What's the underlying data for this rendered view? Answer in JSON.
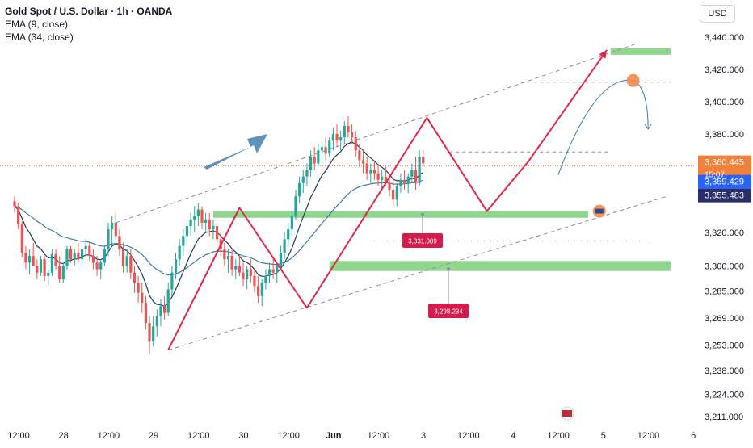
{
  "header": {
    "title": "Gold Spot / U.S. Dollar · 1h · OANDA",
    "indicators": [
      "EMA (9, close)",
      "EMA (34, close)"
    ]
  },
  "currency_button": "USD",
  "colors": {
    "bull": "#26a69a",
    "bear": "#ef5350",
    "ema_fast": "#1e3a5f",
    "ema_slow": "#3a7ca5",
    "zone": "#7ccf7a",
    "projection": "#e0284a",
    "big_arrow": "#4f86b5",
    "current_price": "#f0823c",
    "marker": "#ef8a50",
    "label_red": "#d51c4d",
    "label_blue": "#2962ff",
    "label_navy": "#2a2e6b"
  },
  "chart_data": {
    "type": "candlestick",
    "symbol": "Gold Spot / U.S. Dollar",
    "interval": "1h",
    "source": "OANDA",
    "y_axis": {
      "ticks": [
        "3,440.000",
        "3,420.000",
        "3,400.000",
        "3,380.000",
        "3,320.000",
        "3,300.000",
        "3,285.000",
        "3,269.000",
        "3,253.000",
        "3,238.000",
        "3,224.000",
        "3,211.000"
      ],
      "tick_values": [
        3440,
        3420,
        3400,
        3380,
        3320,
        3300,
        3285,
        3269,
        3253,
        3238,
        3224,
        3211
      ],
      "scale": "log"
    },
    "x_axis": {
      "ticks": [
        "12:00",
        "28",
        "12:00",
        "29",
        "12:00",
        "30",
        "12:00",
        "Jun",
        "12:00",
        "3",
        "12:00",
        "4",
        "12:00",
        "5",
        "12:00",
        "6"
      ],
      "tick_bars": [
        0,
        12,
        24,
        36,
        48,
        60,
        72,
        84,
        96,
        108,
        120,
        132,
        144,
        156,
        168,
        180
      ]
    },
    "price_labels": {
      "current": "3,360.445",
      "countdown": "15:07",
      "ema_fast": "3,359.429",
      "ema_slow": "3,355.483"
    },
    "annotations": [
      {
        "label": "3,331.009",
        "price": 3331.009
      },
      {
        "label": "3,298.234",
        "price": 3298.234
      }
    ],
    "zones": [
      {
        "price_low": 3329,
        "price_high": 3333,
        "bar_from": 53,
        "bar_to": 153
      },
      {
        "price_low": 3297,
        "price_high": 3303,
        "bar_from": 84,
        "bar_to": 175
      },
      {
        "price_low": 3429,
        "price_high": 3433,
        "bar_from": 159,
        "bar_to": 175
      }
    ],
    "projection_path": [
      {
        "bar": 41,
        "price": 3250
      },
      {
        "bar": 60,
        "price": 3335
      },
      {
        "bar": 78,
        "price": 3275
      },
      {
        "bar": 110,
        "price": 3390
      },
      {
        "bar": 126,
        "price": 3333
      },
      {
        "bar": 137,
        "price": 3363
      },
      {
        "bar": 158,
        "price": 3432
      }
    ],
    "channel": {
      "upper": [
        {
          "bar": 27,
          "price": 3326
        },
        {
          "bar": 166,
          "price": 3436
        }
      ],
      "lower": [
        {
          "bar": 41,
          "price": 3250
        },
        {
          "bar": 174,
          "price": 3342
        }
      ]
    },
    "dashed_levels": [
      {
        "price": 3412,
        "bar_from": 135,
        "bar_to": 175
      },
      {
        "price": 3369,
        "bar_from": 116,
        "bar_to": 159
      },
      {
        "price": 3315,
        "bar_from": 96,
        "bar_to": 169
      }
    ],
    "marker_points": [
      {
        "bar": 165,
        "price": 3413
      },
      {
        "bar": 156,
        "price": 3333
      }
    ],
    "curve_forecast": [
      {
        "bar": 145,
        "price": 3355
      },
      {
        "bar": 165,
        "price": 3413
      },
      {
        "bar": 169,
        "price": 3383
      }
    ],
    "candles": [
      {
        "o": 3339,
        "h": 3342,
        "l": 3332,
        "c": 3336
      },
      {
        "o": 3336,
        "h": 3338,
        "l": 3322,
        "c": 3325
      },
      {
        "o": 3325,
        "h": 3327,
        "l": 3305,
        "c": 3308
      },
      {
        "o": 3308,
        "h": 3312,
        "l": 3298,
        "c": 3302
      },
      {
        "o": 3302,
        "h": 3310,
        "l": 3295,
        "c": 3306
      },
      {
        "o": 3306,
        "h": 3314,
        "l": 3300,
        "c": 3300
      },
      {
        "o": 3300,
        "h": 3304,
        "l": 3292,
        "c": 3296
      },
      {
        "o": 3296,
        "h": 3306,
        "l": 3294,
        "c": 3304
      },
      {
        "o": 3304,
        "h": 3306,
        "l": 3291,
        "c": 3294
      },
      {
        "o": 3294,
        "h": 3298,
        "l": 3288,
        "c": 3296
      },
      {
        "o": 3296,
        "h": 3310,
        "l": 3294,
        "c": 3307
      },
      {
        "o": 3307,
        "h": 3310,
        "l": 3298,
        "c": 3300
      },
      {
        "o": 3300,
        "h": 3306,
        "l": 3290,
        "c": 3292
      },
      {
        "o": 3292,
        "h": 3302,
        "l": 3290,
        "c": 3300
      },
      {
        "o": 3300,
        "h": 3312,
        "l": 3298,
        "c": 3310
      },
      {
        "o": 3310,
        "h": 3312,
        "l": 3302,
        "c": 3304
      },
      {
        "o": 3304,
        "h": 3310,
        "l": 3300,
        "c": 3308
      },
      {
        "o": 3308,
        "h": 3314,
        "l": 3302,
        "c": 3304
      },
      {
        "o": 3304,
        "h": 3312,
        "l": 3298,
        "c": 3310
      },
      {
        "o": 3310,
        "h": 3316,
        "l": 3306,
        "c": 3312
      },
      {
        "o": 3312,
        "h": 3315,
        "l": 3303,
        "c": 3306
      },
      {
        "o": 3306,
        "h": 3310,
        "l": 3298,
        "c": 3302
      },
      {
        "o": 3302,
        "h": 3306,
        "l": 3294,
        "c": 3298
      },
      {
        "o": 3298,
        "h": 3304,
        "l": 3292,
        "c": 3302
      },
      {
        "o": 3302,
        "h": 3312,
        "l": 3300,
        "c": 3310
      },
      {
        "o": 3310,
        "h": 3326,
        "l": 3306,
        "c": 3322
      },
      {
        "o": 3322,
        "h": 3330,
        "l": 3312,
        "c": 3326
      },
      {
        "o": 3326,
        "h": 3332,
        "l": 3316,
        "c": 3318
      },
      {
        "o": 3318,
        "h": 3322,
        "l": 3306,
        "c": 3310
      },
      {
        "o": 3310,
        "h": 3314,
        "l": 3296,
        "c": 3300
      },
      {
        "o": 3300,
        "h": 3310,
        "l": 3296,
        "c": 3306
      },
      {
        "o": 3306,
        "h": 3310,
        "l": 3292,
        "c": 3296
      },
      {
        "o": 3296,
        "h": 3300,
        "l": 3284,
        "c": 3290
      },
      {
        "o": 3290,
        "h": 3294,
        "l": 3278,
        "c": 3284
      },
      {
        "o": 3284,
        "h": 3290,
        "l": 3272,
        "c": 3278
      },
      {
        "o": 3278,
        "h": 3282,
        "l": 3262,
        "c": 3266
      },
      {
        "o": 3266,
        "h": 3270,
        "l": 3248,
        "c": 3255
      },
      {
        "o": 3255,
        "h": 3270,
        "l": 3252,
        "c": 3264
      },
      {
        "o": 3264,
        "h": 3274,
        "l": 3258,
        "c": 3270
      },
      {
        "o": 3270,
        "h": 3280,
        "l": 3264,
        "c": 3276
      },
      {
        "o": 3276,
        "h": 3282,
        "l": 3268,
        "c": 3272
      },
      {
        "o": 3272,
        "h": 3290,
        "l": 3270,
        "c": 3286
      },
      {
        "o": 3286,
        "h": 3300,
        "l": 3282,
        "c": 3296
      },
      {
        "o": 3296,
        "h": 3308,
        "l": 3292,
        "c": 3304
      },
      {
        "o": 3304,
        "h": 3316,
        "l": 3300,
        "c": 3312
      },
      {
        "o": 3312,
        "h": 3322,
        "l": 3306,
        "c": 3318
      },
      {
        "o": 3318,
        "h": 3328,
        "l": 3312,
        "c": 3324
      },
      {
        "o": 3324,
        "h": 3332,
        "l": 3318,
        "c": 3328
      },
      {
        "o": 3328,
        "h": 3336,
        "l": 3320,
        "c": 3330
      },
      {
        "o": 3330,
        "h": 3338,
        "l": 3324,
        "c": 3334
      },
      {
        "o": 3334,
        "h": 3336,
        "l": 3322,
        "c": 3326
      },
      {
        "o": 3326,
        "h": 3332,
        "l": 3320,
        "c": 3328
      },
      {
        "o": 3328,
        "h": 3332,
        "l": 3318,
        "c": 3322
      },
      {
        "o": 3322,
        "h": 3328,
        "l": 3316,
        "c": 3324
      },
      {
        "o": 3324,
        "h": 3326,
        "l": 3312,
        "c": 3316
      },
      {
        "o": 3316,
        "h": 3320,
        "l": 3306,
        "c": 3310
      },
      {
        "o": 3310,
        "h": 3314,
        "l": 3300,
        "c": 3304
      },
      {
        "o": 3304,
        "h": 3310,
        "l": 3296,
        "c": 3306
      },
      {
        "o": 3306,
        "h": 3310,
        "l": 3294,
        "c": 3298
      },
      {
        "o": 3298,
        "h": 3304,
        "l": 3292,
        "c": 3300
      },
      {
        "o": 3300,
        "h": 3306,
        "l": 3294,
        "c": 3296
      },
      {
        "o": 3296,
        "h": 3302,
        "l": 3288,
        "c": 3292
      },
      {
        "o": 3292,
        "h": 3300,
        "l": 3286,
        "c": 3298
      },
      {
        "o": 3298,
        "h": 3304,
        "l": 3290,
        "c": 3294
      },
      {
        "o": 3294,
        "h": 3298,
        "l": 3284,
        "c": 3288
      },
      {
        "o": 3288,
        "h": 3294,
        "l": 3278,
        "c": 3282
      },
      {
        "o": 3282,
        "h": 3292,
        "l": 3276,
        "c": 3290
      },
      {
        "o": 3290,
        "h": 3298,
        "l": 3286,
        "c": 3294
      },
      {
        "o": 3294,
        "h": 3302,
        "l": 3290,
        "c": 3298
      },
      {
        "o": 3298,
        "h": 3304,
        "l": 3292,
        "c": 3296
      },
      {
        "o": 3296,
        "h": 3302,
        "l": 3290,
        "c": 3300
      },
      {
        "o": 3300,
        "h": 3312,
        "l": 3298,
        "c": 3308
      },
      {
        "o": 3308,
        "h": 3320,
        "l": 3304,
        "c": 3316
      },
      {
        "o": 3316,
        "h": 3326,
        "l": 3312,
        "c": 3322
      },
      {
        "o": 3322,
        "h": 3334,
        "l": 3318,
        "c": 3330
      },
      {
        "o": 3330,
        "h": 3346,
        "l": 3328,
        "c": 3342
      },
      {
        "o": 3342,
        "h": 3354,
        "l": 3338,
        "c": 3350
      },
      {
        "o": 3350,
        "h": 3358,
        "l": 3344,
        "c": 3354
      },
      {
        "o": 3354,
        "h": 3362,
        "l": 3348,
        "c": 3358
      },
      {
        "o": 3358,
        "h": 3370,
        "l": 3354,
        "c": 3366
      },
      {
        "o": 3366,
        "h": 3372,
        "l": 3358,
        "c": 3362
      },
      {
        "o": 3362,
        "h": 3374,
        "l": 3360,
        "c": 3370
      },
      {
        "o": 3370,
        "h": 3376,
        "l": 3362,
        "c": 3372
      },
      {
        "o": 3372,
        "h": 3378,
        "l": 3364,
        "c": 3368
      },
      {
        "o": 3368,
        "h": 3378,
        "l": 3366,
        "c": 3376
      },
      {
        "o": 3376,
        "h": 3384,
        "l": 3370,
        "c": 3380
      },
      {
        "o": 3380,
        "h": 3386,
        "l": 3372,
        "c": 3376
      },
      {
        "o": 3376,
        "h": 3382,
        "l": 3370,
        "c": 3378
      },
      {
        "o": 3378,
        "h": 3388,
        "l": 3374,
        "c": 3385
      },
      {
        "o": 3385,
        "h": 3391,
        "l": 3378,
        "c": 3381
      },
      {
        "o": 3381,
        "h": 3386,
        "l": 3374,
        "c": 3378
      },
      {
        "o": 3378,
        "h": 3382,
        "l": 3366,
        "c": 3370
      },
      {
        "o": 3370,
        "h": 3374,
        "l": 3360,
        "c": 3364
      },
      {
        "o": 3364,
        "h": 3370,
        "l": 3356,
        "c": 3362
      },
      {
        "o": 3362,
        "h": 3366,
        "l": 3352,
        "c": 3356
      },
      {
        "o": 3356,
        "h": 3362,
        "l": 3350,
        "c": 3358
      },
      {
        "o": 3358,
        "h": 3364,
        "l": 3352,
        "c": 3356
      },
      {
        "o": 3356,
        "h": 3362,
        "l": 3348,
        "c": 3352
      },
      {
        "o": 3352,
        "h": 3358,
        "l": 3346,
        "c": 3354
      },
      {
        "o": 3354,
        "h": 3360,
        "l": 3348,
        "c": 3350
      },
      {
        "o": 3350,
        "h": 3356,
        "l": 3342,
        "c": 3346
      },
      {
        "o": 3346,
        "h": 3352,
        "l": 3336,
        "c": 3340
      },
      {
        "o": 3340,
        "h": 3350,
        "l": 3336,
        "c": 3348
      },
      {
        "o": 3348,
        "h": 3356,
        "l": 3344,
        "c": 3352
      },
      {
        "o": 3352,
        "h": 3358,
        "l": 3346,
        "c": 3350
      },
      {
        "o": 3350,
        "h": 3356,
        "l": 3344,
        "c": 3354
      },
      {
        "o": 3354,
        "h": 3362,
        "l": 3350,
        "c": 3358
      },
      {
        "o": 3358,
        "h": 3366,
        "l": 3346,
        "c": 3350
      },
      {
        "o": 3350,
        "h": 3370,
        "l": 3348,
        "c": 3366
      },
      {
        "o": 3366,
        "h": 3370,
        "l": 3360,
        "c": 3362
      }
    ]
  }
}
